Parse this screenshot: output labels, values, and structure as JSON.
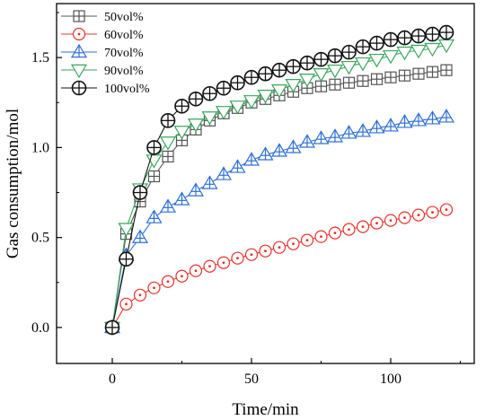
{
  "chart_data": {
    "type": "line",
    "xlabel": "Time/min",
    "ylabel": "Gas consumption/mol",
    "xlim": [
      -20,
      130
    ],
    "ylim": [
      -0.2,
      1.8
    ],
    "xticks": [
      0,
      50,
      100
    ],
    "yticks": [
      0.0,
      0.5,
      1.0,
      1.5
    ],
    "xtick_labels": [
      "0",
      "50",
      "100"
    ],
    "ytick_labels": [
      "0.0",
      "0.5",
      "1.0",
      "1.5"
    ],
    "grid": false,
    "legend_position": "top-left",
    "x": [
      0,
      5,
      10,
      15,
      20,
      25,
      30,
      35,
      40,
      45,
      50,
      55,
      60,
      65,
      70,
      75,
      80,
      85,
      90,
      95,
      100,
      105,
      110,
      115,
      120
    ],
    "series": [
      {
        "name": "50vol%",
        "marker": "square-cross",
        "color": "#555555",
        "values": [
          0.0,
          0.52,
          0.7,
          0.84,
          0.95,
          1.04,
          1.1,
          1.15,
          1.19,
          1.22,
          1.25,
          1.27,
          1.29,
          1.31,
          1.33,
          1.34,
          1.35,
          1.36,
          1.37,
          1.38,
          1.39,
          1.4,
          1.41,
          1.42,
          1.43
        ]
      },
      {
        "name": "60vol%",
        "marker": "circle-dot",
        "color": "#e8312a",
        "values": [
          0.0,
          0.13,
          0.18,
          0.22,
          0.255,
          0.285,
          0.315,
          0.34,
          0.36,
          0.385,
          0.405,
          0.425,
          0.445,
          0.465,
          0.485,
          0.505,
          0.525,
          0.545,
          0.56,
          0.58,
          0.595,
          0.61,
          0.625,
          0.64,
          0.655
        ]
      },
      {
        "name": "70vol%",
        "marker": "triangle-up",
        "color": "#2e6fd6",
        "values": [
          0.0,
          0.4,
          0.5,
          0.61,
          0.67,
          0.71,
          0.76,
          0.8,
          0.85,
          0.89,
          0.93,
          0.96,
          0.98,
          1.0,
          1.03,
          1.05,
          1.06,
          1.08,
          1.09,
          1.11,
          1.12,
          1.14,
          1.15,
          1.16,
          1.17
        ]
      },
      {
        "name": "90vol%",
        "marker": "triangle-down",
        "color": "#3aa65a",
        "values": [
          0.0,
          0.55,
          0.77,
          0.93,
          1.03,
          1.09,
          1.13,
          1.17,
          1.2,
          1.23,
          1.26,
          1.29,
          1.32,
          1.35,
          1.38,
          1.41,
          1.43,
          1.45,
          1.47,
          1.49,
          1.51,
          1.53,
          1.54,
          1.55,
          1.57
        ]
      },
      {
        "name": "100vol%",
        "marker": "circle-cross",
        "color": "#111111",
        "values": [
          0.0,
          0.38,
          0.75,
          1.0,
          1.15,
          1.23,
          1.27,
          1.3,
          1.33,
          1.36,
          1.39,
          1.41,
          1.43,
          1.45,
          1.47,
          1.49,
          1.51,
          1.53,
          1.56,
          1.58,
          1.6,
          1.61,
          1.62,
          1.63,
          1.64
        ]
      }
    ]
  }
}
